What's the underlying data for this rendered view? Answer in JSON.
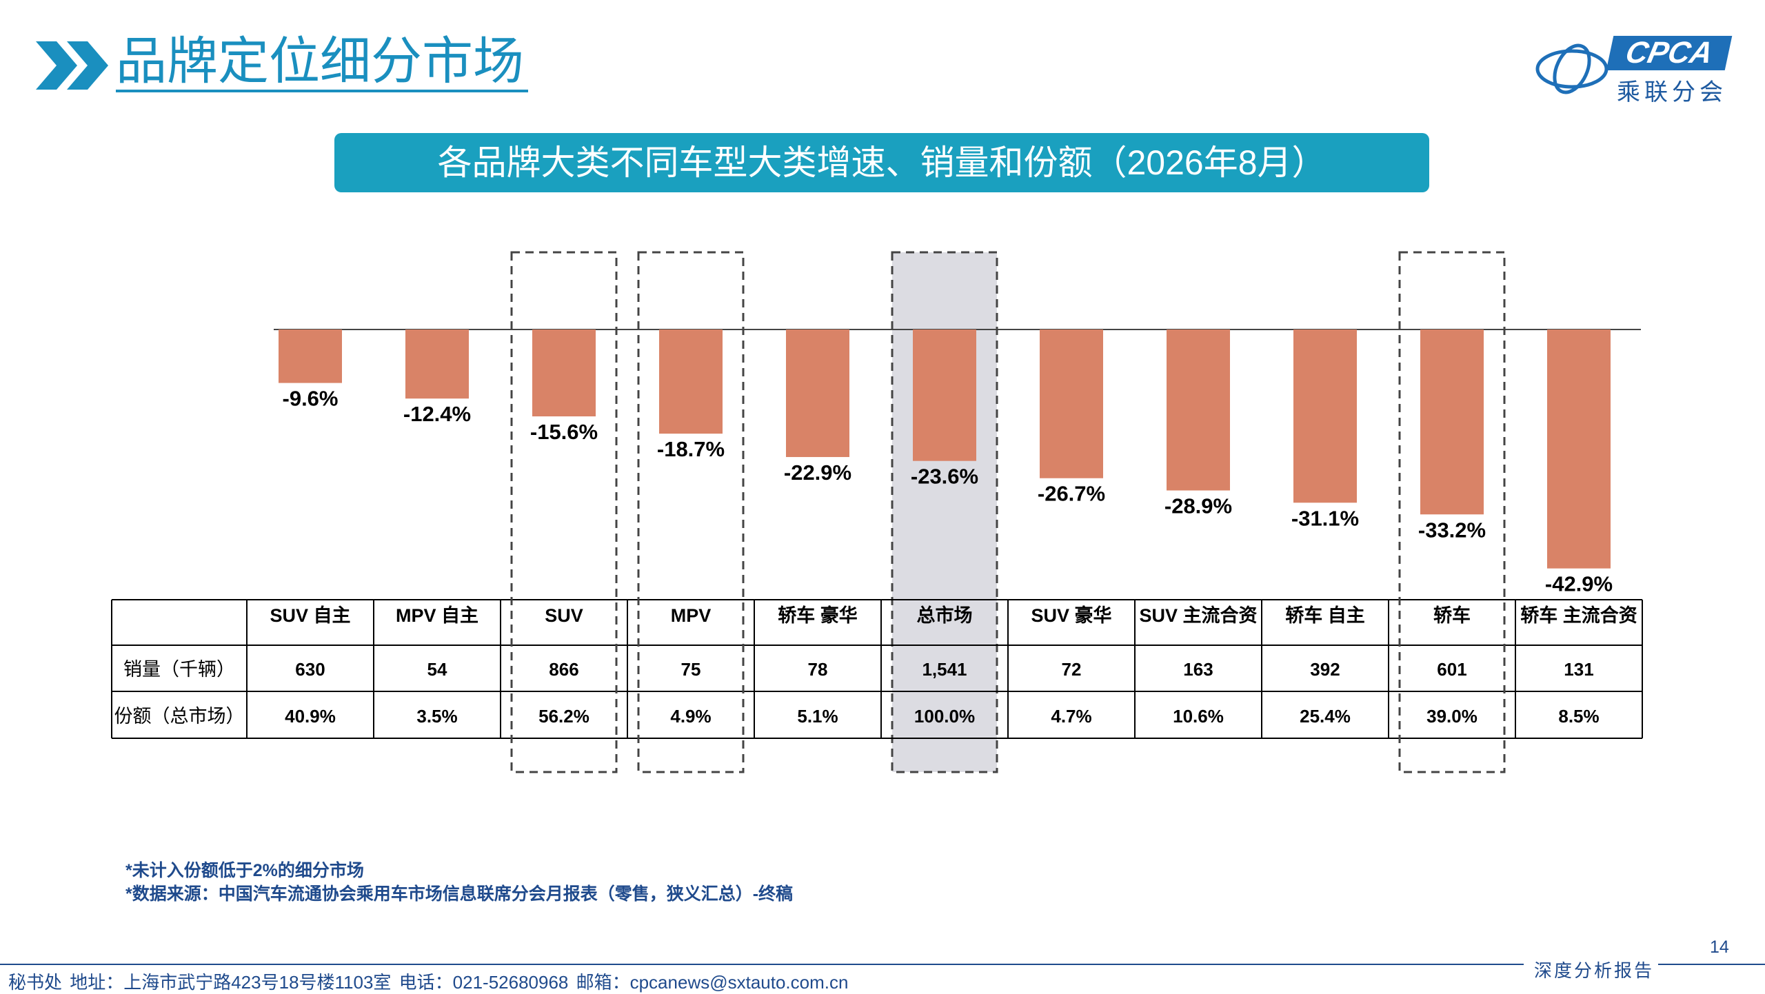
{
  "header": {
    "title": "品牌定位细分市场",
    "logo_text": "CPCA",
    "logo_cn": "乘联分会"
  },
  "banner": {
    "text": "各品牌大类不同车型大类增速、销量和份额（2026年8月）"
  },
  "chart_data": {
    "type": "bar",
    "categories": [
      "SUV 自主",
      "MPV 自主",
      "SUV",
      "MPV",
      "轿车 豪华",
      "总市场",
      "SUV 豪华",
      "SUV 主流合资",
      "轿车 自主",
      "轿车",
      "轿车 主流合资"
    ],
    "values": [
      -9.6,
      -12.4,
      -15.6,
      -18.7,
      -22.9,
      -23.6,
      -26.7,
      -28.9,
      -31.1,
      -33.2,
      -42.9
    ],
    "value_labels": [
      "-9.6%",
      "-12.4%",
      "-15.6%",
      "-18.7%",
      "-22.9%",
      "-23.6%",
      "-26.7%",
      "-28.9%",
      "-31.1%",
      "-33.2%",
      "-42.9%"
    ],
    "unit": "%",
    "bar_color": "#d98367",
    "highlight_boxes": [
      2,
      3,
      9
    ],
    "highlight_shaded": [
      5
    ],
    "table": {
      "rows": [
        {
          "label": "销量（千辆）",
          "values": [
            "630",
            "54",
            "866",
            "75",
            "78",
            "1,541",
            "72",
            "163",
            "392",
            "601",
            "131"
          ]
        },
        {
          "label": "份额（总市场）",
          "values": [
            "40.9%",
            "3.5%",
            "56.2%",
            "4.9%",
            "5.1%",
            "100.0%",
            "4.7%",
            "10.6%",
            "25.4%",
            "39.0%",
            "8.5%"
          ]
        }
      ]
    }
  },
  "notes": [
    "*未计入份额低于2%的细分市场",
    "*数据来源：中国汽车流通协会乘用车市场信息联席分会月报表（零售，狭义汇总）-终稿"
  ],
  "page_number": "14",
  "report_label": "深度分析报告",
  "footer": {
    "address": "秘书处   地址：上海市武宁路423号18号楼1103室  电话：021-52680968   邮箱：cpcanews@sxtauto.com.cn"
  },
  "colors": {
    "accent": "#1a8fbf",
    "banner": "#1aa0bf",
    "bar": "#d98367",
    "text_blue": "#1f4a8c"
  }
}
